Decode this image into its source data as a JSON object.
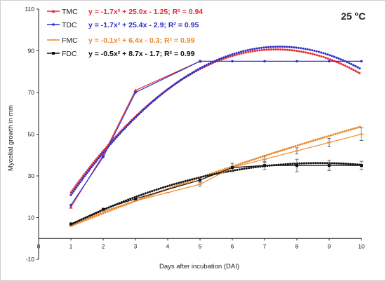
{
  "chart_data": {
    "type": "line",
    "title": "",
    "annotation": "25 °C",
    "xlabel": "Days after incubation (DAI)",
    "ylabel": "Mycelial growth in mm",
    "xlim": [
      0,
      10
    ],
    "ylim": [
      -10,
      110
    ],
    "xticks": [
      0,
      1,
      2,
      3,
      4,
      5,
      6,
      7,
      8,
      9,
      10
    ],
    "xtick_labels": [
      "0",
      "1",
      "2",
      "3",
      "4",
      "5",
      "6",
      "7",
      "8",
      "9",
      "10"
    ],
    "yticks": [
      -10,
      10,
      30,
      50,
      70,
      90,
      110
    ],
    "ytick_labels": [
      "-10",
      "10",
      "30",
      "50",
      "70",
      "90",
      "110"
    ],
    "grid": false,
    "legend_position": "top-left",
    "series": [
      {
        "name": "TMC",
        "color": "#e8292e",
        "marker": "triangle",
        "x": [
          1,
          2,
          3,
          5
        ],
        "y": [
          15,
          40,
          71,
          85
        ],
        "trendline": {
          "equation": "y = -1.7x² + 25.0x - 1.25; R² = 0.94",
          "a": -1.7,
          "b": 25.0,
          "c": -1.25,
          "x_range": [
            1,
            10
          ],
          "color": "#e8292e"
        }
      },
      {
        "name": "TDC",
        "color": "#2d2fc9",
        "marker": "circle",
        "x": [
          1,
          2,
          3,
          5,
          6,
          7,
          8,
          9,
          10
        ],
        "y": [
          16,
          39,
          70,
          85,
          85,
          85,
          85,
          85,
          85
        ],
        "trendline": {
          "equation": "y = -1.7x² + 25.4x - 2.9; R² = 0.95",
          "a": -1.7,
          "b": 25.4,
          "c": -2.9,
          "x_range": [
            1,
            10
          ],
          "color": "#2d2fc9"
        }
      },
      {
        "name": "FMC",
        "color": "#f08a2e",
        "marker": "dash",
        "x": [
          1,
          2,
          3,
          4,
          5,
          6,
          7,
          8,
          9,
          10
        ],
        "y": [
          6,
          13,
          18,
          22,
          26,
          34,
          38,
          42,
          46,
          50
        ],
        "error": [
          0,
          0,
          0,
          0,
          1,
          2,
          1.5,
          1.5,
          2,
          3
        ],
        "trendline": {
          "equation": "y = -0.1x² + 6.4x - 0.3; R² = 0.99",
          "a": -0.1,
          "b": 6.4,
          "c": -0.3,
          "x_range": [
            1,
            10
          ],
          "color": "#e8892e"
        }
      },
      {
        "name": "FDC",
        "color": "#111111",
        "marker": "square",
        "x": [
          1,
          2,
          3,
          5,
          6,
          7,
          8,
          9,
          10
        ],
        "y": [
          7,
          14,
          19,
          28,
          34,
          35,
          35,
          35,
          35
        ],
        "error": [
          0,
          0,
          0,
          1,
          2,
          2,
          3,
          2.5,
          2
        ],
        "trendline": {
          "equation": "y = -0.5x² + 8.7x - 1.7; R² = 0.99",
          "a": -0.5,
          "b": 8.7,
          "c": -1.7,
          "x_range": [
            1,
            10
          ],
          "color": "#111111"
        }
      }
    ]
  }
}
